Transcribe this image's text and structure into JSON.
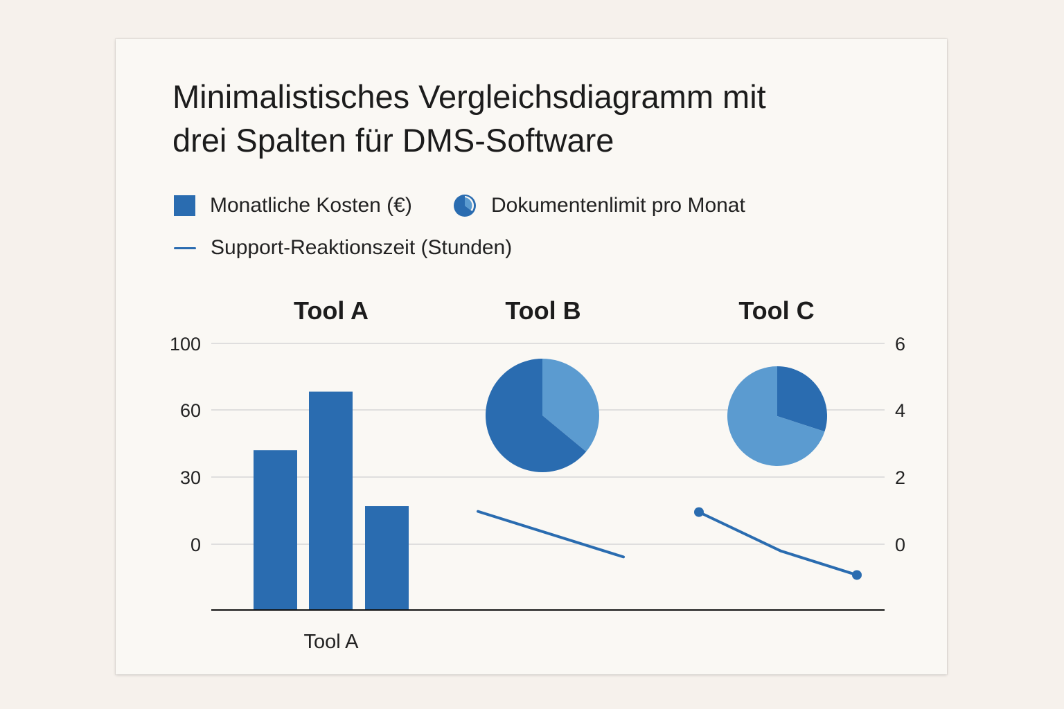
{
  "title_lines": [
    "Minimalistisches Vergleichsdiagramm mit",
    "drei Spalten für DMS-Software"
  ],
  "legend": {
    "cost": "Monatliche Kosten (€)",
    "docs": "Dokumentenlimit pro Monat",
    "support": "Support-Reaktionszeit (Stunden)"
  },
  "colors": {
    "primary": "#2a6cb0",
    "light": "#5b9bd0",
    "grid": "#d6d6d6"
  },
  "chart_data": {
    "type": "bar",
    "title": "Minimalistisches Vergleichsdiagramm mit drei Spalten für DMS-Software",
    "columns": [
      "Tool A",
      "Tool B",
      "Tool C"
    ],
    "x_label": "Tool A",
    "y_left": {
      "ticks": [
        100,
        60,
        30,
        0
      ]
    },
    "y_right": {
      "ticks": [
        6,
        4,
        2,
        0
      ]
    },
    "bars": {
      "column": "Tool A",
      "series": "Monatliche Kosten (€)",
      "values": [
        42,
        71,
        17
      ]
    },
    "pies": [
      {
        "column": "Tool B",
        "series": "Dokumentenlimit pro Monat",
        "slices": [
          {
            "color": "dark",
            "share": 0.64
          },
          {
            "color": "light",
            "share": 0.36
          }
        ]
      },
      {
        "column": "Tool C",
        "series": "Dokumentenlimit pro Monat",
        "slices": [
          {
            "color": "dark",
            "share": 0.3
          },
          {
            "color": "light",
            "share": 0.7
          }
        ]
      }
    ],
    "lines": [
      {
        "column": "Tool B",
        "series": "Support-Reaktionszeit (Stunden)",
        "points": [
          0.98,
          -0.38
        ],
        "markers": false
      },
      {
        "column": "Tool C",
        "series": "Support-Reaktionszeit (Stunden)",
        "points": [
          0.96,
          -0.2,
          -0.92
        ],
        "markers": true
      }
    ],
    "grid": true
  }
}
